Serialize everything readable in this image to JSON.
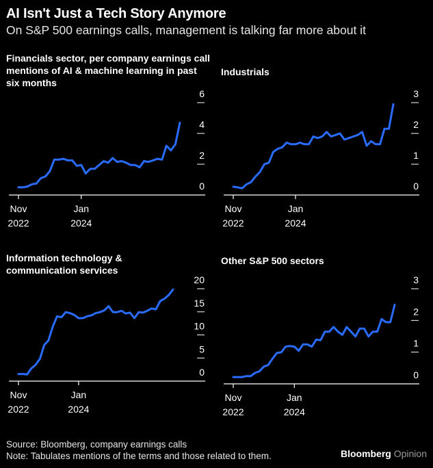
{
  "title": "AI Isn't Just a Tech Story Anymore",
  "subtitle": "On S&P 500 earnings calls, management is talking far more about it",
  "source": "Source: Bloomberg, company earnings calls",
  "note": "Note: Tabulates mentions of the terms and those related to them.",
  "brand": {
    "name": "Bloomberg",
    "suffix": "Opinion"
  },
  "colors": {
    "line": "#2a6cff",
    "axis": "#ffffff",
    "background": "#000000"
  },
  "chart_data": [
    {
      "type": "line",
      "title": "Financials sector, per company earnings call mentions of AI & machine learning in past six months",
      "x_tick_labels": [
        [
          "Nov",
          "2022"
        ],
        [
          "Jan",
          "2024"
        ]
      ],
      "x_tick_positions": [
        0,
        14
      ],
      "y_ticks": [
        "0",
        "2",
        "4",
        "6"
      ],
      "ylim": [
        0,
        6
      ],
      "series": [
        {
          "values": [
            0.1,
            0.1,
            0.15,
            0.3,
            0.35,
            0.7,
            0.8,
            1.15,
            1.9,
            1.9,
            1.95,
            1.85,
            1.85,
            1.5,
            1.55,
            1.0,
            1.3,
            1.3,
            1.55,
            1.8,
            1.7,
            2.0,
            1.75,
            1.8,
            1.7,
            1.55,
            1.55,
            1.4,
            1.8,
            1.75,
            1.85,
            1.95,
            1.9,
            2.8,
            2.5,
            2.9,
            4.3
          ]
        }
      ]
    },
    {
      "type": "line",
      "title": "Industrials",
      "x_tick_labels": [
        [
          "Nov",
          "2022"
        ],
        [
          "Jan",
          "2024"
        ]
      ],
      "x_tick_positions": [
        0,
        14
      ],
      "y_ticks": [
        "0",
        "1",
        "2",
        "3"
      ],
      "ylim": [
        0,
        3
      ],
      "series": [
        {
          "values": [
            0.07,
            0.05,
            0.02,
            0.15,
            0.22,
            0.4,
            0.55,
            0.8,
            0.85,
            1.2,
            1.3,
            1.35,
            1.5,
            1.45,
            1.45,
            1.5,
            1.45,
            1.45,
            1.7,
            1.65,
            1.7,
            1.85,
            1.7,
            1.75,
            1.8,
            1.6,
            1.65,
            1.7,
            1.75,
            1.85,
            1.4,
            1.55,
            1.45,
            1.45,
            1.95,
            1.95,
            2.75
          ]
        }
      ]
    },
    {
      "type": "line",
      "title": "Information technology & communication services",
      "x_tick_labels": [
        [
          "Nov",
          "2022"
        ],
        [
          "Jan",
          "2024"
        ]
      ],
      "x_tick_positions": [
        0,
        14
      ],
      "y_ticks": [
        "0",
        "5",
        "10",
        "15",
        "20"
      ],
      "ylim": [
        0,
        20
      ],
      "series": [
        {
          "values": [
            0.2,
            0.2,
            0.1,
            1.4,
            2.2,
            3.5,
            6.5,
            7.5,
            10.5,
            12.7,
            12.5,
            13.6,
            13.4,
            13.0,
            12.3,
            12.3,
            12.7,
            12.9,
            13.4,
            13.6,
            14.0,
            14.9,
            13.6,
            13.6,
            13.9,
            13.3,
            13.5,
            12.3,
            13.6,
            13.5,
            13.9,
            14.4,
            14.2,
            16.0,
            16.5,
            17.3,
            18.5
          ]
        }
      ]
    },
    {
      "type": "line",
      "title": "Other S&P 500 sectors",
      "x_tick_labels": [
        [
          "Nov",
          "2022"
        ],
        [
          "Jan",
          "2024"
        ]
      ],
      "x_tick_positions": [
        0,
        14
      ],
      "y_ticks": [
        "0",
        "1",
        "2",
        "3"
      ],
      "ylim": [
        0,
        3
      ],
      "series": [
        {
          "values": [
            0.02,
            0.02,
            0.02,
            0.05,
            0.05,
            0.15,
            0.2,
            0.35,
            0.4,
            0.6,
            0.78,
            0.8,
            0.98,
            1.0,
            0.98,
            0.85,
            1.05,
            1.05,
            0.98,
            1.2,
            1.18,
            1.45,
            1.45,
            1.6,
            1.45,
            1.35,
            1.6,
            1.45,
            1.3,
            1.55,
            1.55,
            1.3,
            1.45,
            1.45,
            1.85,
            1.75,
            1.75,
            2.3
          ]
        }
      ]
    }
  ]
}
